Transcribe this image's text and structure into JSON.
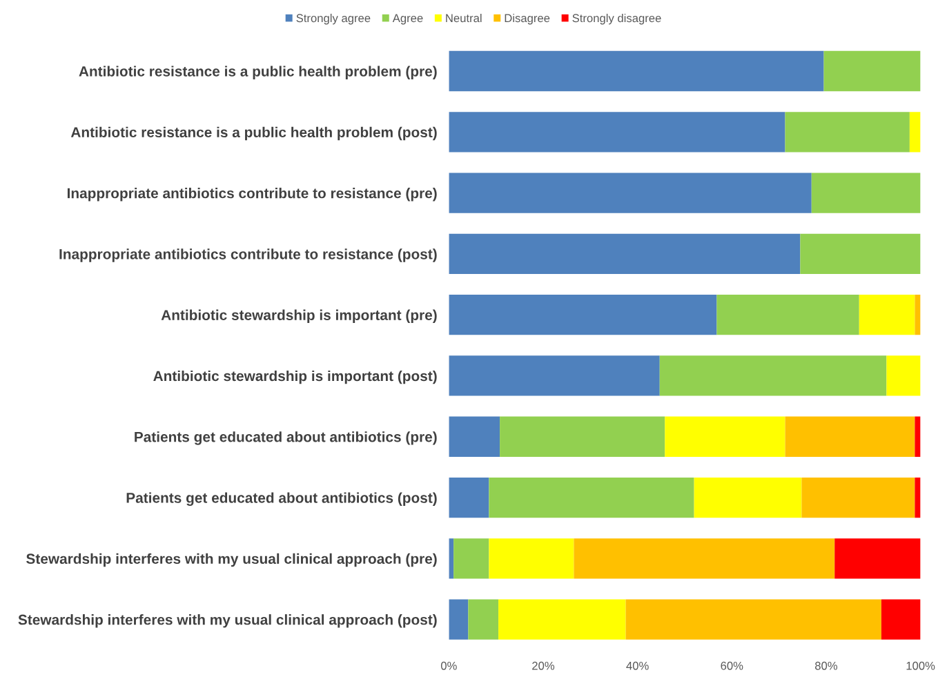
{
  "chart_data": {
    "type": "bar",
    "orientation": "horizontal",
    "stacked": true,
    "legend": "top",
    "grid": false,
    "categories": [
      "Antibiotic resistance is a public health problem (pre)",
      "Antibiotic resistance is a public health problem (post)",
      "Inappropriate antibiotics contribute to resistance (pre)",
      "Inappropriate antibiotics contribute to resistance (post)",
      "Antibiotic stewardship is important (pre)",
      "Antibiotic stewardship is important (post)",
      "Patients get educated about antibiotics (pre)",
      "Patients get educated about antibiotics (post)",
      "Stewardship interferes with my usual clinical approach (pre)",
      "Stewardship interferes with my usual clinical approach (post)"
    ],
    "series": [
      {
        "name": "Strongly agree",
        "color": "#4f81bd",
        "values": [
          79.5,
          71.3,
          76.9,
          74.5,
          56.8,
          44.7,
          10.8,
          8.5,
          1.0,
          4.1
        ]
      },
      {
        "name": "Agree",
        "color": "#92d050",
        "values": [
          20.5,
          26.4,
          23.1,
          25.5,
          30.2,
          48.1,
          35.0,
          43.5,
          7.5,
          6.4
        ]
      },
      {
        "name": "Neutral",
        "color": "#ffff00",
        "values": [
          0,
          2.3,
          0,
          0,
          11.8,
          7.2,
          25.5,
          22.8,
          18.0,
          27.0
        ]
      },
      {
        "name": "Disagree",
        "color": "#ffc000",
        "values": [
          0,
          0,
          0,
          0,
          1.2,
          0,
          27.5,
          24.0,
          55.3,
          54.2
        ]
      },
      {
        "name": "Strongly disagree",
        "color": "#ff0000",
        "values": [
          0,
          0,
          0,
          0,
          0,
          0,
          1.2,
          1.2,
          18.2,
          8.3
        ]
      }
    ],
    "xlim": [
      0,
      100
    ],
    "xticks": [
      {
        "value": 0,
        "label": "0%"
      },
      {
        "value": 20,
        "label": "20%"
      },
      {
        "value": 40,
        "label": "40%"
      },
      {
        "value": 60,
        "label": "60%"
      },
      {
        "value": 80,
        "label": "80%"
      },
      {
        "value": 100,
        "label": "100%"
      }
    ]
  }
}
